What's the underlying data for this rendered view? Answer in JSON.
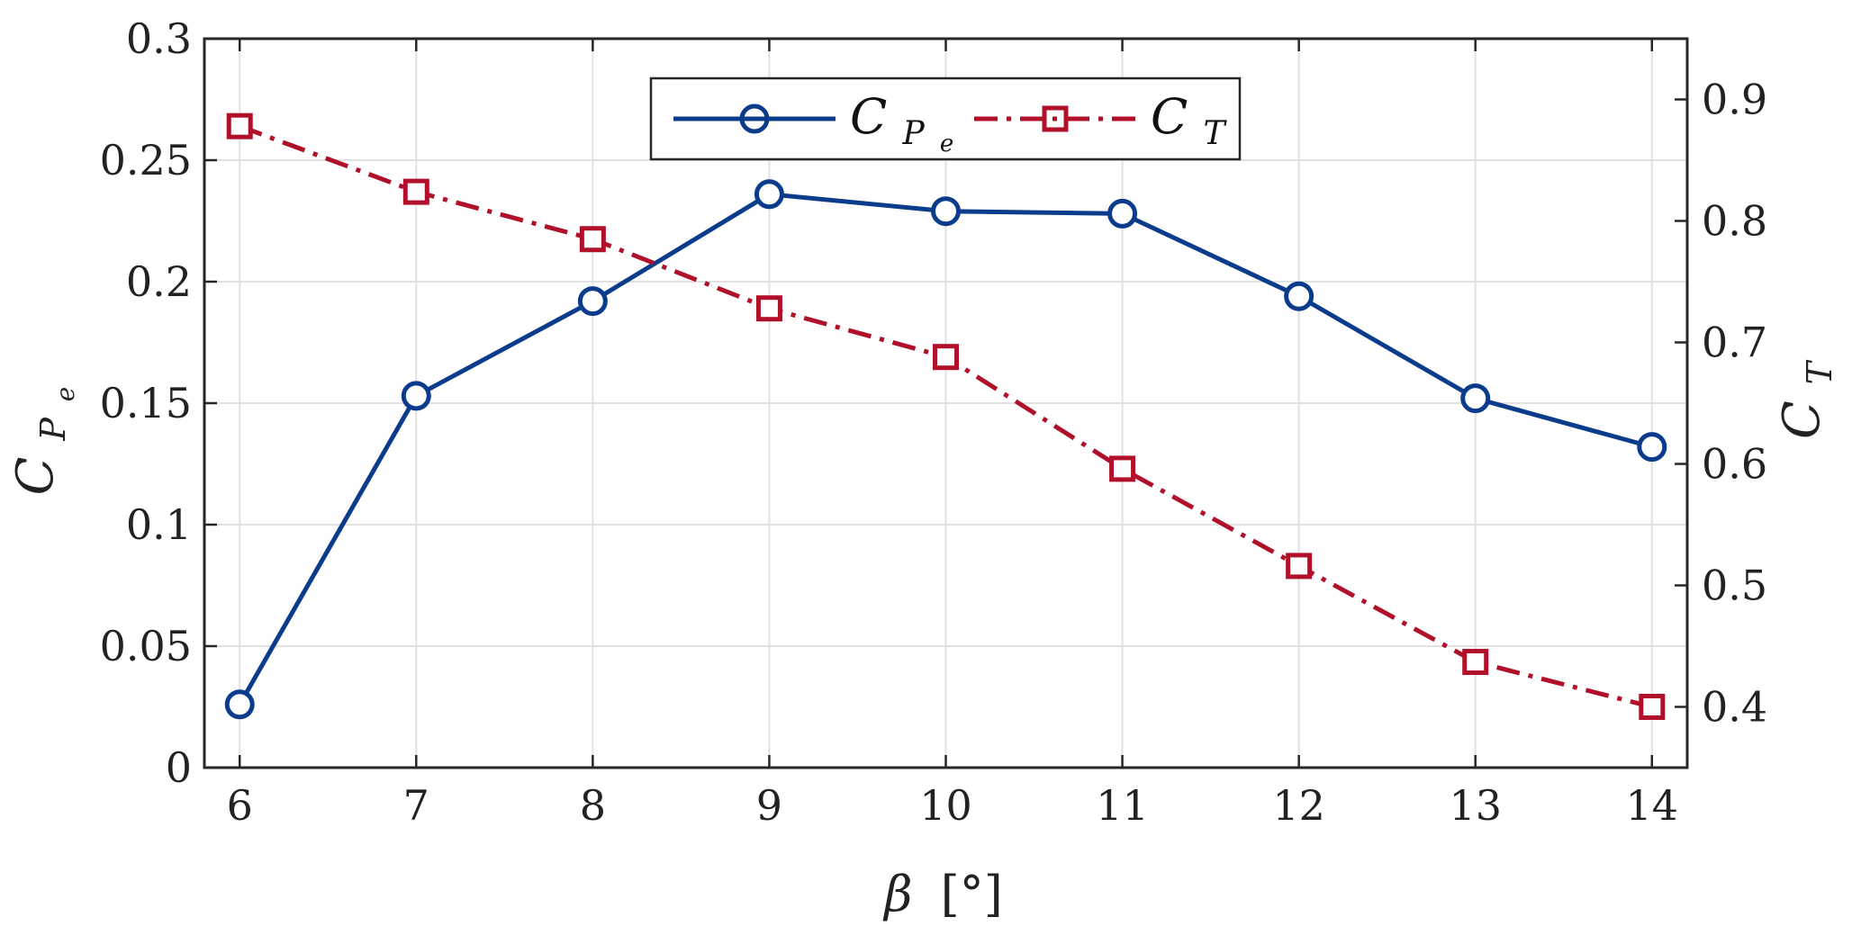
{
  "chart_data": {
    "type": "line",
    "x": [
      6,
      7,
      8,
      9,
      10,
      11,
      12,
      13,
      14
    ],
    "xlabel": {
      "symbol": "β",
      "unit": "[°]"
    },
    "xlim": [
      5.8,
      14.2
    ],
    "xticks": [
      "6",
      "7",
      "8",
      "9",
      "10",
      "11",
      "12",
      "13",
      "14"
    ],
    "ylim_left": [
      0,
      0.3
    ],
    "yticks_left": [
      "0",
      "0.05",
      "0.1",
      "0.15",
      "0.2",
      "0.25",
      "0.3"
    ],
    "ylim_right": [
      0.35,
      0.95
    ],
    "yticks_right": [
      "0.4",
      "0.5",
      "0.6",
      "0.7",
      "0.8",
      "0.9"
    ],
    "ylabel_left": {
      "main": "C",
      "sub": "P",
      "subsub": "e"
    },
    "ylabel_right": {
      "main": "C",
      "sub": "T"
    },
    "grid": true,
    "legend_placement": "top-center",
    "series": [
      {
        "legend": {
          "main": "C",
          "sub": "P",
          "subsub": "e"
        },
        "axis": "left",
        "marker": "circle",
        "line_style": "solid",
        "color": "#0B3C8C",
        "values": [
          0.026,
          0.153,
          0.192,
          0.236,
          0.229,
          0.228,
          0.194,
          0.152,
          0.132
        ]
      },
      {
        "legend": {
          "main": "C",
          "sub": "T"
        },
        "axis": "right",
        "marker": "square",
        "line_style": "dash-dot",
        "color": "#B0102A",
        "values": [
          0.878,
          0.824,
          0.785,
          0.728,
          0.688,
          0.596,
          0.516,
          0.437,
          0.4
        ]
      }
    ]
  }
}
